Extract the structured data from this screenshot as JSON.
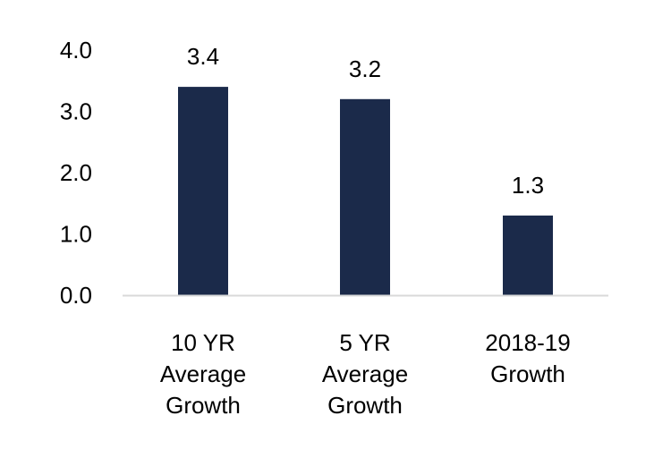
{
  "chart_data": {
    "type": "bar",
    "title": "",
    "xlabel": "",
    "ylabel": "",
    "categories": [
      [
        "10 YR",
        "Average",
        "Growth"
      ],
      [
        "5 YR",
        "Average",
        "Growth"
      ],
      [
        "2018-19",
        "Growth"
      ]
    ],
    "values": [
      3.4,
      3.2,
      1.3
    ],
    "data_labels": [
      "3.4",
      "3.2",
      "1.3"
    ],
    "ylim": [
      0,
      4
    ],
    "yticks": [
      "0.0",
      "1.0",
      "2.0",
      "3.0",
      "4.0"
    ],
    "grid": false,
    "legend": "none",
    "colors": {
      "bar": "#1b2a4a",
      "axis": "#d9d9d9",
      "text": "#000000"
    }
  }
}
